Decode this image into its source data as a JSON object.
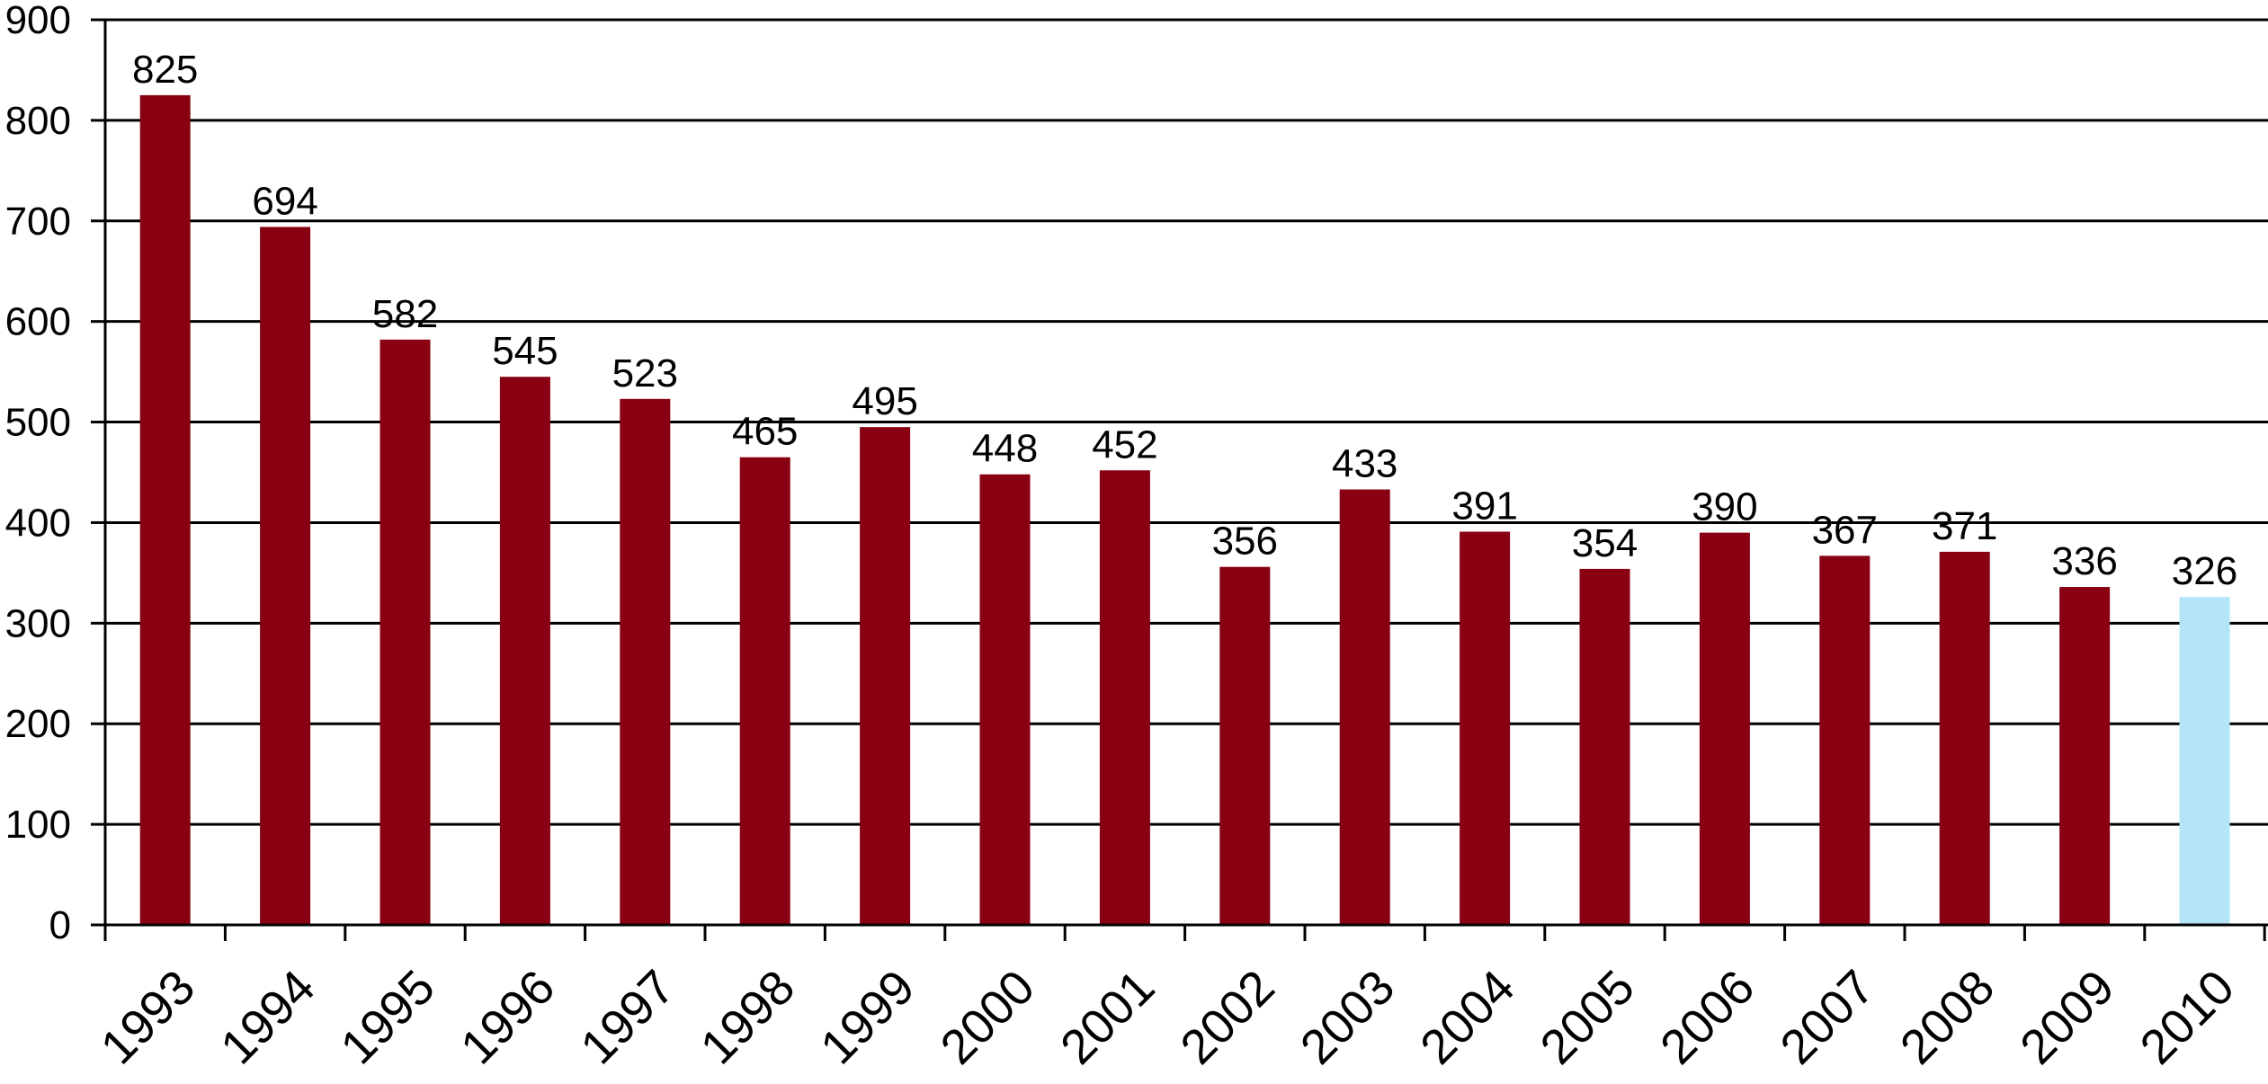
{
  "chart_data": {
    "type": "bar",
    "title": "",
    "xlabel": "",
    "ylabel": "",
    "ylim": [
      0,
      900
    ],
    "yticks": [
      0,
      100,
      200,
      300,
      400,
      500,
      600,
      700,
      800,
      900
    ],
    "grid": true,
    "categories": [
      "1993",
      "1994",
      "1995",
      "1996",
      "1997",
      "1998",
      "1999",
      "2000",
      "2001",
      "2002",
      "2003",
      "2004",
      "2005",
      "2006",
      "2007",
      "2008",
      "2009",
      "2010"
    ],
    "values": [
      825,
      694,
      582,
      545,
      523,
      465,
      495,
      448,
      452,
      356,
      433,
      391,
      354,
      390,
      367,
      371,
      336,
      326
    ],
    "data_labels": [
      "825",
      "694",
      "582",
      "545",
      "523",
      "465",
      "495",
      "448",
      "452",
      "356",
      "433",
      "391",
      "354",
      "390",
      "367",
      "371",
      "336",
      "326"
    ],
    "bar_colors": [
      "#880011",
      "#880011",
      "#880011",
      "#880011",
      "#880011",
      "#880011",
      "#880011",
      "#880011",
      "#880011",
      "#880011",
      "#880011",
      "#880011",
      "#880011",
      "#880011",
      "#880011",
      "#880011",
      "#880011",
      "#b3e4f8"
    ]
  }
}
